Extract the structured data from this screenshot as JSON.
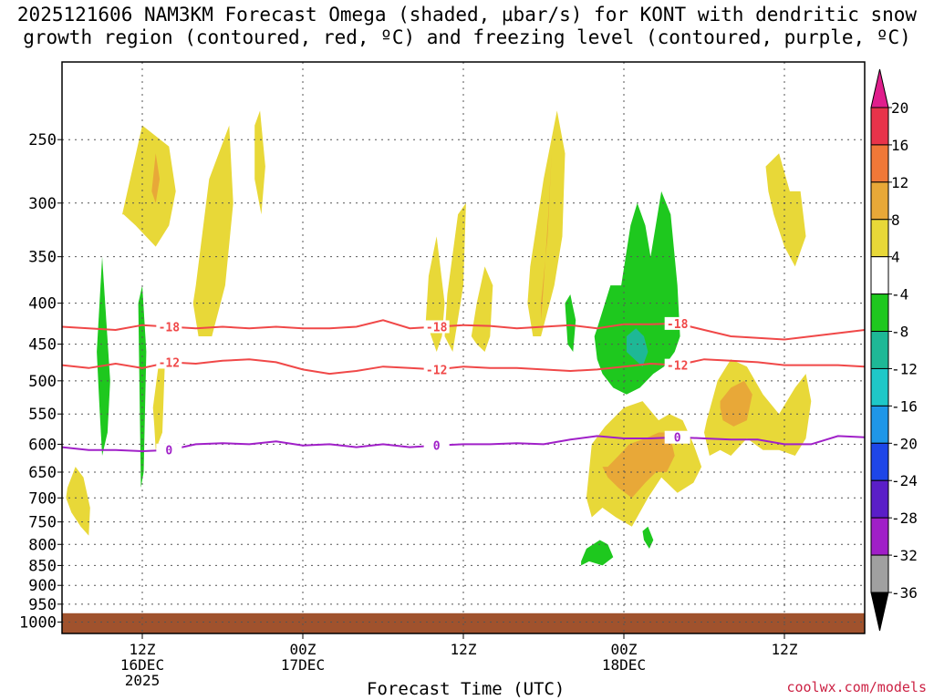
{
  "title_line1": "2025121606 NAM3KM Forecast Omega (shaded, µbar/s) for KONT with dendritic snow",
  "title_line2": "growth region (contoured, red, ºC) and freezing level (contoured, purple, ºC)",
  "watermark": "coolwx.com/models",
  "chart_data": {
    "type": "contour",
    "xlabel": "Forecast Time (UTC)",
    "ylabel": "",
    "y_scale": "pressure (inverted)",
    "ylim": [
      1000,
      200
    ],
    "y_ticks": [
      250,
      300,
      350,
      400,
      450,
      500,
      550,
      600,
      650,
      700,
      750,
      800,
      850,
      900,
      950,
      1000
    ],
    "xlim_hours": [
      6,
      66
    ],
    "x_ticks": [
      {
        "hour": 12,
        "l1": "12Z",
        "l2": "16DEC",
        "l3": "2025"
      },
      {
        "hour": 24,
        "l1": "00Z",
        "l2": "17DEC",
        "l3": ""
      },
      {
        "hour": 36,
        "l1": "12Z",
        "l2": "",
        "l3": ""
      },
      {
        "hour": 48,
        "l1": "00Z",
        "l2": "18DEC",
        "l3": ""
      },
      {
        "hour": 60,
        "l1": "12Z",
        "l2": "",
        "l3": ""
      }
    ],
    "grid": true,
    "colorbar": {
      "levels": [
        20,
        16,
        12,
        8,
        4,
        -4,
        -8,
        -12,
        -16,
        -20,
        -24,
        -28,
        -32,
        -36
      ],
      "colors": [
        "#e8334a",
        "#f07838",
        "#e8a838",
        "#e8d838",
        "#ffffff",
        "#1ec81e",
        "#1eb896",
        "#1ec8c8",
        "#1e96e8",
        "#1e46e8",
        "#5a1ec8",
        "#a01ec8",
        "#a0a0a0"
      ],
      "top_arrow_color": "#e01e8c",
      "bottom_arrow_color": "#000000"
    },
    "contours": [
      {
        "label": "-18",
        "color": "#f04848",
        "hours": [
          6,
          8,
          10,
          12,
          14,
          16,
          18,
          20,
          22,
          24,
          26,
          28,
          30,
          32,
          34,
          36,
          38,
          40,
          42,
          44,
          46,
          48,
          50,
          52,
          54,
          56,
          58,
          60,
          62,
          64,
          66
        ],
        "pressures": [
          428,
          430,
          432,
          426,
          428,
          430,
          428,
          430,
          428,
          430,
          430,
          428,
          420,
          430,
          428,
          426,
          427,
          430,
          428,
          426,
          430,
          425,
          425,
          424,
          432,
          440,
          442,
          444,
          440,
          436,
          432
        ]
      },
      {
        "label": "-12",
        "color": "#f04848",
        "hours": [
          6,
          8,
          10,
          12,
          14,
          16,
          18,
          20,
          22,
          24,
          26,
          28,
          30,
          32,
          34,
          36,
          38,
          40,
          42,
          44,
          46,
          48,
          50,
          52,
          54,
          56,
          58,
          60,
          62,
          64,
          66
        ],
        "pressures": [
          478,
          482,
          476,
          482,
          474,
          476,
          472,
          470,
          474,
          484,
          490,
          486,
          480,
          482,
          484,
          480,
          482,
          482,
          484,
          486,
          484,
          480,
          476,
          478,
          470,
          472,
          474,
          478,
          478,
          478,
          480
        ]
      },
      {
        "label": "0",
        "color": "#a020c8",
        "hours": [
          6,
          8,
          10,
          12,
          14,
          16,
          18,
          20,
          22,
          24,
          26,
          28,
          30,
          32,
          34,
          36,
          38,
          40,
          42,
          44,
          46,
          48,
          50,
          52,
          54,
          56,
          58,
          60,
          62,
          64,
          66
        ],
        "pressures": [
          605,
          610,
          610,
          612,
          610,
          600,
          598,
          600,
          595,
          602,
          600,
          605,
          600,
          605,
          602,
          600,
          600,
          598,
          600,
          592,
          586,
          590,
          590,
          588,
          590,
          592,
          592,
          600,
          600,
          586,
          588
        ]
      }
    ],
    "omega_regions": [
      {
        "value": 4,
        "hours": [
          10.5,
          12,
          14,
          14.5,
          14,
          13,
          11.5,
          10.6
        ],
        "pressures": [
          310,
          240,
          255,
          290,
          320,
          340,
          320,
          310
        ]
      },
      {
        "value": 8,
        "hours": [
          12.7,
          13.0,
          13.3,
          13.0,
          12.7
        ],
        "pressures": [
          290,
          260,
          280,
          300,
          290
        ]
      },
      {
        "value": 4,
        "hours": [
          16,
          17,
          18.5,
          18.8,
          18.2,
          17.2,
          16.2,
          15.8
        ],
        "pressures": [
          380,
          280,
          240,
          300,
          380,
          440,
          440,
          400
        ]
      },
      {
        "value": 4,
        "hours": [
          20.4,
          20.8,
          21.2,
          20.9,
          20.4
        ],
        "pressures": [
          240,
          230,
          270,
          310,
          280
        ]
      },
      {
        "value": 4,
        "hours": [
          12.8,
          13.2,
          13.7,
          13.5,
          13.0,
          12.9
        ],
        "pressures": [
          540,
          480,
          470,
          580,
          610,
          570
        ]
      },
      {
        "value": 4,
        "hours": [
          6.4,
          7.0,
          7.6,
          8.1,
          8.0,
          7.4,
          6.7,
          6.3
        ],
        "pressures": [
          680,
          640,
          660,
          720,
          780,
          760,
          730,
          700
        ]
      },
      {
        "value": -4,
        "hours": [
          8.6,
          9.0,
          9.6,
          9.4,
          9.0,
          8.8
        ],
        "pressures": [
          460,
          350,
          500,
          580,
          620,
          540
        ]
      },
      {
        "value": -4,
        "hours": [
          11.7,
          12.0,
          12.3,
          12.1,
          11.9
        ],
        "pressures": [
          400,
          380,
          460,
          650,
          680
        ]
      },
      {
        "value": 4,
        "hours": [
          33.4,
          34.0,
          34.6,
          34.4,
          34.0,
          33.6,
          33.2
        ],
        "pressures": [
          370,
          330,
          400,
          440,
          460,
          440,
          420
        ]
      },
      {
        "value": 4,
        "hours": [
          34.8,
          35.6,
          36.2,
          36.0,
          35.2,
          34.6
        ],
        "pressures": [
          390,
          310,
          300,
          380,
          460,
          440
        ]
      },
      {
        "value": 4,
        "hours": [
          37.0,
          37.6,
          38.2,
          38.0,
          37.6,
          37.0,
          36.6
        ],
        "pressures": [
          400,
          360,
          380,
          440,
          460,
          450,
          440
        ]
      },
      {
        "value": 4,
        "hours": [
          41.0,
          42.0,
          43.0,
          43.6,
          43.4,
          42.8,
          41.8,
          41.2,
          40.8
        ],
        "pressures": [
          360,
          280,
          230,
          260,
          330,
          380,
          440,
          440,
          400
        ]
      },
      {
        "value": 8,
        "hours": [
          41.8,
          42.3,
          42.6,
          42.4,
          42.0,
          41.8
        ],
        "pressures": [
          400,
          330,
          260,
          300,
          380,
          420
        ]
      },
      {
        "value": -4,
        "hours": [
          46.0,
          47.0,
          47.8,
          48.5,
          49.0,
          49.6,
          50.0,
          50.8,
          51.5,
          52.0,
          52.2,
          51.8,
          51.0,
          50.2,
          49.2,
          48.2,
          47.2,
          46.4,
          46.0,
          45.8
        ],
        "pressures": [
          430,
          380,
          380,
          320,
          300,
          320,
          350,
          290,
          310,
          380,
          440,
          460,
          480,
          490,
          510,
          520,
          510,
          490,
          470,
          440
        ]
      },
      {
        "value": -8,
        "hours": [
          48.2,
          48.9,
          49.5,
          49.8,
          49.4,
          48.8,
          48.2
        ],
        "pressures": [
          440,
          430,
          440,
          460,
          480,
          470,
          460
        ]
      },
      {
        "value": -4,
        "hours": [
          43.6,
          44.0,
          44.4,
          44.2,
          43.8
        ],
        "pressures": [
          400,
          390,
          420,
          460,
          450
        ]
      },
      {
        "value": 4,
        "hours": [
          45.6,
          46.6,
          48.0,
          49.4,
          50.6,
          51.4,
          52.4,
          53.2,
          53.8,
          53.2,
          52.0,
          50.8,
          49.8,
          48.6,
          47.4,
          46.4,
          45.6,
          45.2
        ],
        "pressures": [
          600,
          570,
          540,
          530,
          560,
          550,
          560,
          600,
          640,
          670,
          690,
          660,
          700,
          760,
          740,
          720,
          740,
          700
        ]
      },
      {
        "value": 8,
        "hours": [
          46.8,
          47.6,
          48.4,
          49.6,
          50.6,
          51.4,
          51.8,
          51.2,
          50.4,
          49.6,
          48.6,
          47.6,
          46.8,
          46.4
        ],
        "pressures": [
          640,
          620,
          600,
          590,
          580,
          580,
          620,
          650,
          650,
          670,
          700,
          680,
          660,
          640
        ]
      },
      {
        "value": 4,
        "hours": [
          54.2,
          55.0,
          56.0,
          57.2,
          58.4,
          59.6,
          60.8,
          61.6,
          62.0,
          61.6,
          60.8,
          59.6,
          58.4,
          57.2,
          56.0,
          55.2,
          54.4,
          54.0
        ],
        "pressures": [
          560,
          500,
          470,
          480,
          520,
          550,
          510,
          490,
          530,
          590,
          620,
          610,
          610,
          590,
          620,
          610,
          620,
          580
        ]
      },
      {
        "value": 8,
        "hours": [
          55.2,
          56.0,
          57.0,
          57.6,
          57.2,
          56.2,
          55.4,
          55.2
        ],
        "pressures": [
          530,
          510,
          500,
          520,
          560,
          570,
          560,
          540
        ]
      },
      {
        "value": 8,
        "hours": [
          50.0,
          50.6,
          51.2,
          50.8,
          50.2,
          49.8
        ],
        "pressures": [
          610,
          590,
          600,
          620,
          620,
          615
        ]
      },
      {
        "value": 4,
        "hours": [
          58.6,
          59.6,
          60.4,
          61.2,
          61.6,
          60.8,
          60.0,
          59.2,
          58.8
        ],
        "pressures": [
          270,
          260,
          290,
          290,
          330,
          360,
          340,
          310,
          290
        ]
      },
      {
        "value": -4,
        "hours": [
          44.8,
          45.2,
          46.2,
          46.8,
          47.2,
          46.4,
          45.4,
          44.8
        ],
        "pressures": [
          840,
          810,
          790,
          800,
          830,
          850,
          840,
          850
        ]
      },
      {
        "value": -4,
        "hours": [
          49.4,
          49.8,
          50.2,
          49.9,
          49.5
        ],
        "pressures": [
          770,
          760,
          790,
          810,
          790
        ]
      }
    ],
    "terrain_color": "#a0522d"
  }
}
